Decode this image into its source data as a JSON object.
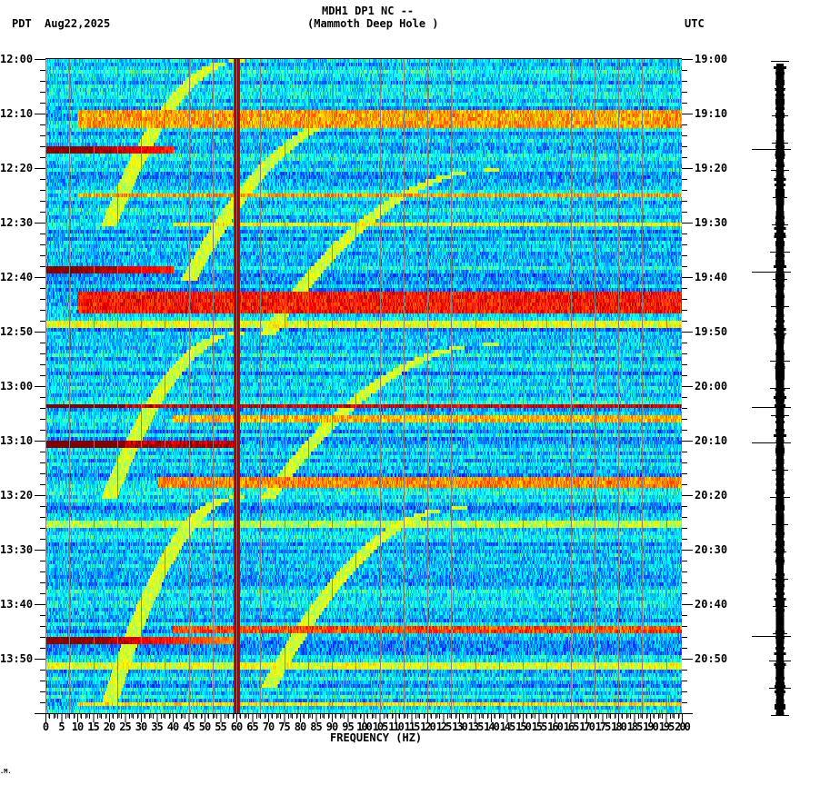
{
  "header": {
    "station_line": "MDH1 DP1 NC --",
    "location_line": "(Mammoth Deep Hole )",
    "left_timezone": "PDT",
    "date": "Aug22,2025",
    "right_timezone": "UTC"
  },
  "footer_mark": ".M.",
  "chart_data": {
    "type": "heatmap",
    "title": "MDH1 DP1 NC -- (Mammoth Deep Hole )",
    "subtitle": "Aug22,2025",
    "xlabel": "FREQUENCY (HZ)",
    "ylabel_left": "PDT",
    "ylabel_right": "UTC",
    "x_range": [
      0,
      200
    ],
    "x_ticks": [
      0,
      5,
      10,
      15,
      20,
      25,
      30,
      35,
      40,
      45,
      50,
      55,
      60,
      65,
      70,
      75,
      80,
      85,
      90,
      95,
      100,
      105,
      110,
      115,
      120,
      125,
      130,
      135,
      140,
      145,
      150,
      155,
      160,
      165,
      170,
      175,
      180,
      185,
      190,
      195,
      200
    ],
    "y_ticks_left": [
      "12:00",
      "12:10",
      "12:20",
      "12:30",
      "12:40",
      "12:50",
      "13:00",
      "13:10",
      "13:20",
      "13:30",
      "13:40",
      "13:50"
    ],
    "y_ticks_right": [
      "19:00",
      "19:10",
      "19:20",
      "19:30",
      "19:40",
      "19:50",
      "20:00",
      "20:10",
      "20:20",
      "20:30",
      "20:40",
      "20:50"
    ],
    "time_span_minutes": 120,
    "minor_tick_minutes": 2,
    "colormap": [
      "#00007f",
      "#0000ff",
      "#0080ff",
      "#00ffff",
      "#80ff80",
      "#ffff00",
      "#ff8000",
      "#ff0000",
      "#7f0000"
    ],
    "background_level": 0.32,
    "persistent_lines_hz": [
      {
        "freq": 60,
        "level": 1.0,
        "label": "60 Hz power line"
      },
      {
        "freq": 120,
        "level": 0.55
      },
      {
        "freq": 180,
        "level": 0.5
      }
    ],
    "grid_lines_hz_every": 7.5,
    "horizontal_events": [
      {
        "minute": 10.5,
        "duration": 3.5,
        "fmin": 10,
        "fmax": 200,
        "level": 0.72
      },
      {
        "minute": 16.3,
        "duration": 1.0,
        "fmin": 0,
        "fmax": 40,
        "level": 1.0,
        "decay": true
      },
      {
        "minute": 24.5,
        "duration": 0.9,
        "fmin": 10,
        "fmax": 200,
        "level": 0.72
      },
      {
        "minute": 30.0,
        "duration": 0.8,
        "fmin": 40,
        "fmax": 200,
        "level": 0.62
      },
      {
        "minute": 38.4,
        "duration": 1.0,
        "fmin": 0,
        "fmax": 40,
        "level": 1.0,
        "decay": true
      },
      {
        "minute": 44.2,
        "duration": 4.0,
        "fmin": 10,
        "fmax": 200,
        "level": 0.86
      },
      {
        "minute": 48.5,
        "duration": 1.0,
        "fmin": 0,
        "fmax": 200,
        "level": 0.6
      },
      {
        "minute": 63.3,
        "duration": 1.0,
        "fmin": 0,
        "fmax": 200,
        "level": 0.92,
        "hot_low": true
      },
      {
        "minute": 65.5,
        "duration": 1.6,
        "fmin": 40,
        "fmax": 200,
        "level": 0.7
      },
      {
        "minute": 70.3,
        "duration": 1.0,
        "fmin": 0,
        "fmax": 60,
        "level": 0.95,
        "hot_low": true
      },
      {
        "minute": 77.3,
        "duration": 2.0,
        "fmin": 35,
        "fmax": 200,
        "level": 0.74
      },
      {
        "minute": 85.0,
        "duration": 1.0,
        "fmin": 0,
        "fmax": 200,
        "level": 0.55
      },
      {
        "minute": 104.3,
        "duration": 1.0,
        "fmin": 40,
        "fmax": 200,
        "level": 0.8
      },
      {
        "minute": 106.3,
        "duration": 1.0,
        "fmin": 0,
        "fmax": 60,
        "level": 1.0,
        "decay": true
      },
      {
        "minute": 111.0,
        "duration": 1.0,
        "fmin": 0,
        "fmax": 200,
        "level": 0.6
      },
      {
        "minute": 118.0,
        "duration": 1.0,
        "fmin": 10,
        "fmax": 200,
        "level": 0.65
      }
    ],
    "chirps": [
      {
        "start_minute": 0,
        "start_hz": 60,
        "end_minute": 30,
        "end_hz": 20
      },
      {
        "start_minute": 10,
        "start_hz": 100,
        "end_minute": 40,
        "end_hz": 45
      },
      {
        "start_minute": 20,
        "start_hz": 140,
        "end_minute": 50,
        "end_hz": 70
      },
      {
        "start_minute": 50,
        "start_hz": 60,
        "end_minute": 80,
        "end_hz": 20
      },
      {
        "start_minute": 52,
        "start_hz": 140,
        "end_minute": 80,
        "end_hz": 70
      },
      {
        "start_minute": 80,
        "start_hz": 60,
        "end_minute": 118,
        "end_hz": 20
      },
      {
        "start_minute": 82,
        "start_hz": 130,
        "end_minute": 115,
        "end_hz": 70
      }
    ],
    "seismogram": {
      "large_spikes_minutes": [
        16.5,
        39.0,
        63.8,
        70.3,
        105.8
      ],
      "small_ticks_every_minutes": 5
    }
  }
}
